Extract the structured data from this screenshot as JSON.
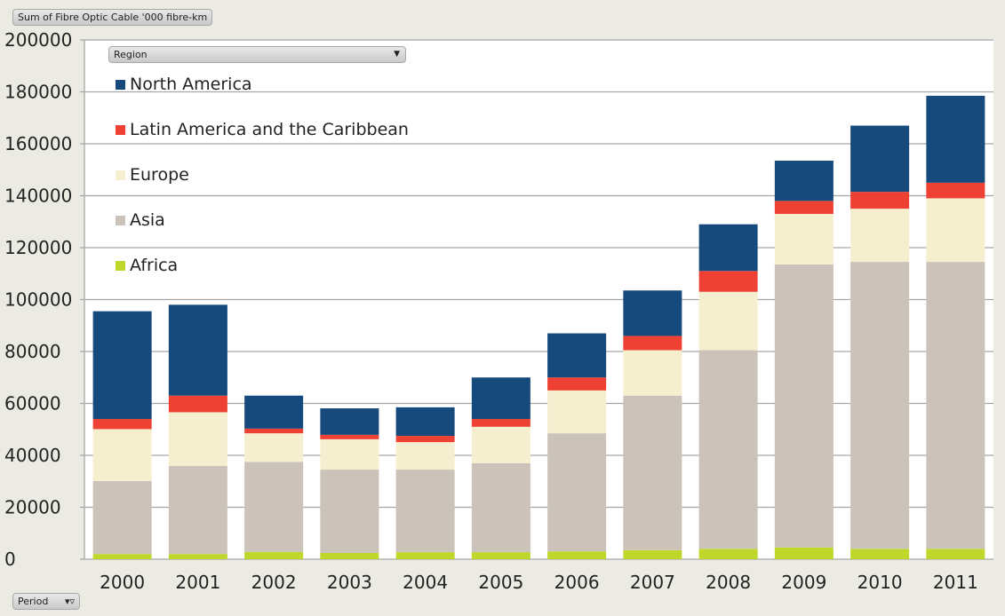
{
  "header": {
    "measure_label": "Sum of Fibre Optic Cable '000 fibre-km",
    "filter_label": "Region",
    "axis_field_label": "Period"
  },
  "chart_data": {
    "type": "bar",
    "stacked": true,
    "title": "",
    "xlabel": "",
    "ylabel": "Sum of Fibre Optic Cable '000 fibre-km",
    "ylim": [
      0,
      200000
    ],
    "yticks": [
      "0",
      "20000",
      "40000",
      "60000",
      "80000",
      "100000",
      "120000",
      "140000",
      "160000",
      "180000",
      "200000"
    ],
    "categories": [
      "2000",
      "2001",
      "2002",
      "2003",
      "2004",
      "2005",
      "2006",
      "2007",
      "2008",
      "2009",
      "2010",
      "2011"
    ],
    "grid": true,
    "legend_position": "top-left",
    "series": [
      {
        "name": "Africa",
        "color": "#bfd72b",
        "values": [
          2000,
          2000,
          2800,
          2400,
          2700,
          2700,
          3000,
          3500,
          4000,
          4500,
          4000,
          4000
        ]
      },
      {
        "name": "Asia",
        "color": "#cbc3b9",
        "values": [
          28100,
          33900,
          34700,
          32100,
          31800,
          34300,
          45500,
          59500,
          76500,
          109000,
          110500,
          110500
        ]
      },
      {
        "name": "Europe",
        "color": "#f5efcf",
        "values": [
          20000,
          20700,
          11000,
          11700,
          10600,
          14000,
          16500,
          17500,
          22500,
          19500,
          20500,
          24500
        ]
      },
      {
        "name": "Latin America and the Caribbean",
        "color": "#ef4133",
        "values": [
          3900,
          6400,
          1800,
          1700,
          2400,
          3000,
          5000,
          5500,
          8000,
          5000,
          6500,
          6000
        ]
      },
      {
        "name": "North America",
        "color": "#174a7c",
        "values": [
          41500,
          35000,
          12700,
          10200,
          11000,
          16000,
          17000,
          17500,
          18000,
          15500,
          25500,
          33500
        ]
      }
    ]
  }
}
